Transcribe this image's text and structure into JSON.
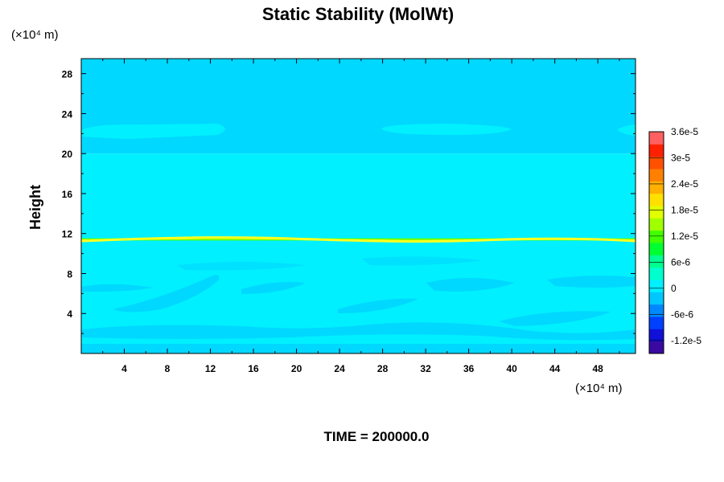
{
  "chart_data": {
    "type": "heatmap",
    "title": "Static Stability (MolWt)",
    "ylabel": "Height",
    "x_unit": "(×10⁴ m)",
    "y_unit": "(×10⁴ m)",
    "footer": "TIME = 200000.0",
    "xlim": [
      0,
      51.5
    ],
    "ylim": [
      0,
      29.5
    ],
    "x_ticks": [
      4,
      8,
      12,
      16,
      20,
      24,
      28,
      32,
      36,
      40,
      44,
      48
    ],
    "y_ticks": [
      4,
      8,
      12,
      16,
      20,
      24,
      28
    ],
    "colorbar": {
      "min": -1.5e-05,
      "max": 3.6e-05,
      "tick_values": [
        3.6e-05,
        3e-05,
        2.4e-05,
        1.8e-05,
        1.2e-05,
        6e-06,
        0,
        -6e-06,
        -1.2e-05
      ],
      "tick_labels": [
        "3.6e-5",
        "3e-5",
        "2.4e-5",
        "1.8e-5",
        "1.2e-5",
        "6e-6",
        "0",
        "-6e-6",
        "-1.2e-5"
      ],
      "colors": [
        "#3a0aa0",
        "#1010d8",
        "#0040ff",
        "#0088ff",
        "#00c8ff",
        "#00f0ff",
        "#00ffcc",
        "#00ff90",
        "#00ff30",
        "#40ff00",
        "#a0ff00",
        "#e0ff00",
        "#ffe000",
        "#ffb000",
        "#ff8000",
        "#ff5000",
        "#ff2000",
        "#ff6060"
      ]
    },
    "layers": [
      {
        "name": "upper background",
        "y_range": [
          20,
          29.5
        ],
        "color": "#00d8ff"
      },
      {
        "name": "lower background",
        "y_range": [
          0,
          20
        ],
        "color": "#00f0ff"
      },
      {
        "name": "tropopause maximum",
        "y_center": 11.3,
        "value": 1.8e-05
      }
    ]
  }
}
